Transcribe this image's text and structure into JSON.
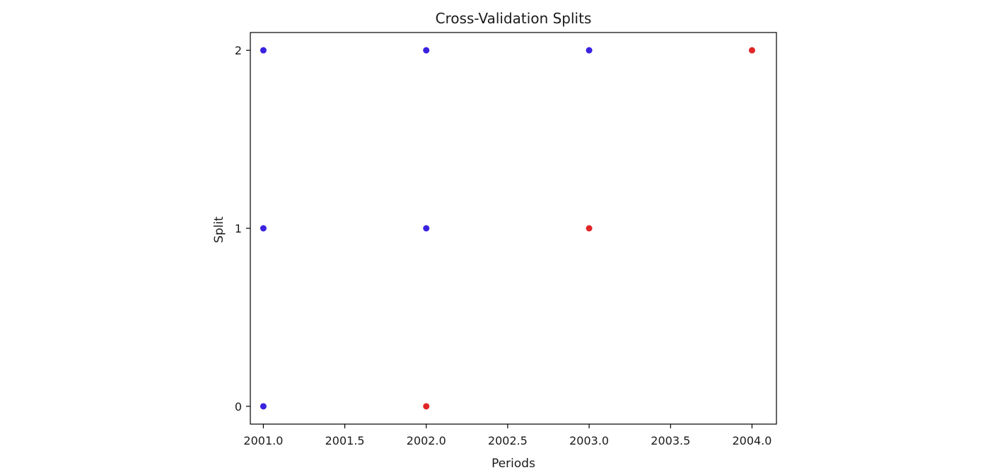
{
  "chart_data": {
    "type": "scatter",
    "title": "Cross-Validation Splits",
    "xlabel": "Periods",
    "ylabel": "Split",
    "xlim": [
      2000.92,
      2004.15
    ],
    "ylim": [
      -0.1,
      2.1
    ],
    "xticks": [
      2001.0,
      2001.5,
      2002.0,
      2002.5,
      2003.0,
      2003.5,
      2004.0
    ],
    "xtick_labels": [
      "2001.0",
      "2001.5",
      "2002.0",
      "2002.5",
      "2003.0",
      "2003.5",
      "2004.0"
    ],
    "yticks": [
      0,
      1,
      2
    ],
    "ytick_labels": [
      "0",
      "1",
      "2"
    ],
    "grid": false,
    "colors": {
      "train": "#3a22e0",
      "test": "#e02626"
    },
    "points": [
      {
        "x": 2001,
        "y": 0,
        "role": "train"
      },
      {
        "x": 2002,
        "y": 0,
        "role": "test"
      },
      {
        "x": 2001,
        "y": 1,
        "role": "train"
      },
      {
        "x": 2002,
        "y": 1,
        "role": "train"
      },
      {
        "x": 2003,
        "y": 1,
        "role": "test"
      },
      {
        "x": 2001,
        "y": 2,
        "role": "train"
      },
      {
        "x": 2002,
        "y": 2,
        "role": "train"
      },
      {
        "x": 2003,
        "y": 2,
        "role": "train"
      },
      {
        "x": 2004,
        "y": 2,
        "role": "test"
      }
    ]
  }
}
